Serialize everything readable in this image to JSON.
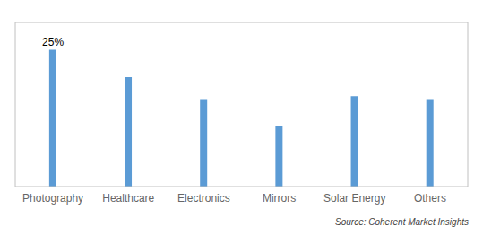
{
  "chart_data": {
    "type": "bar",
    "categories": [
      "Photography",
      "Healthcare",
      "Electronics",
      "Mirrors",
      "Solar Energy",
      "Others"
    ],
    "values": [
      25,
      20,
      16,
      11,
      16.5,
      16
    ],
    "color": "#5b9bd5",
    "ylim": [
      0,
      30
    ],
    "grid": false,
    "tick_labels": "x",
    "annotations": [
      {
        "x": "Photography",
        "y": 25,
        "text": "25%"
      }
    ],
    "source": "Source: Coherent Market Insights"
  }
}
